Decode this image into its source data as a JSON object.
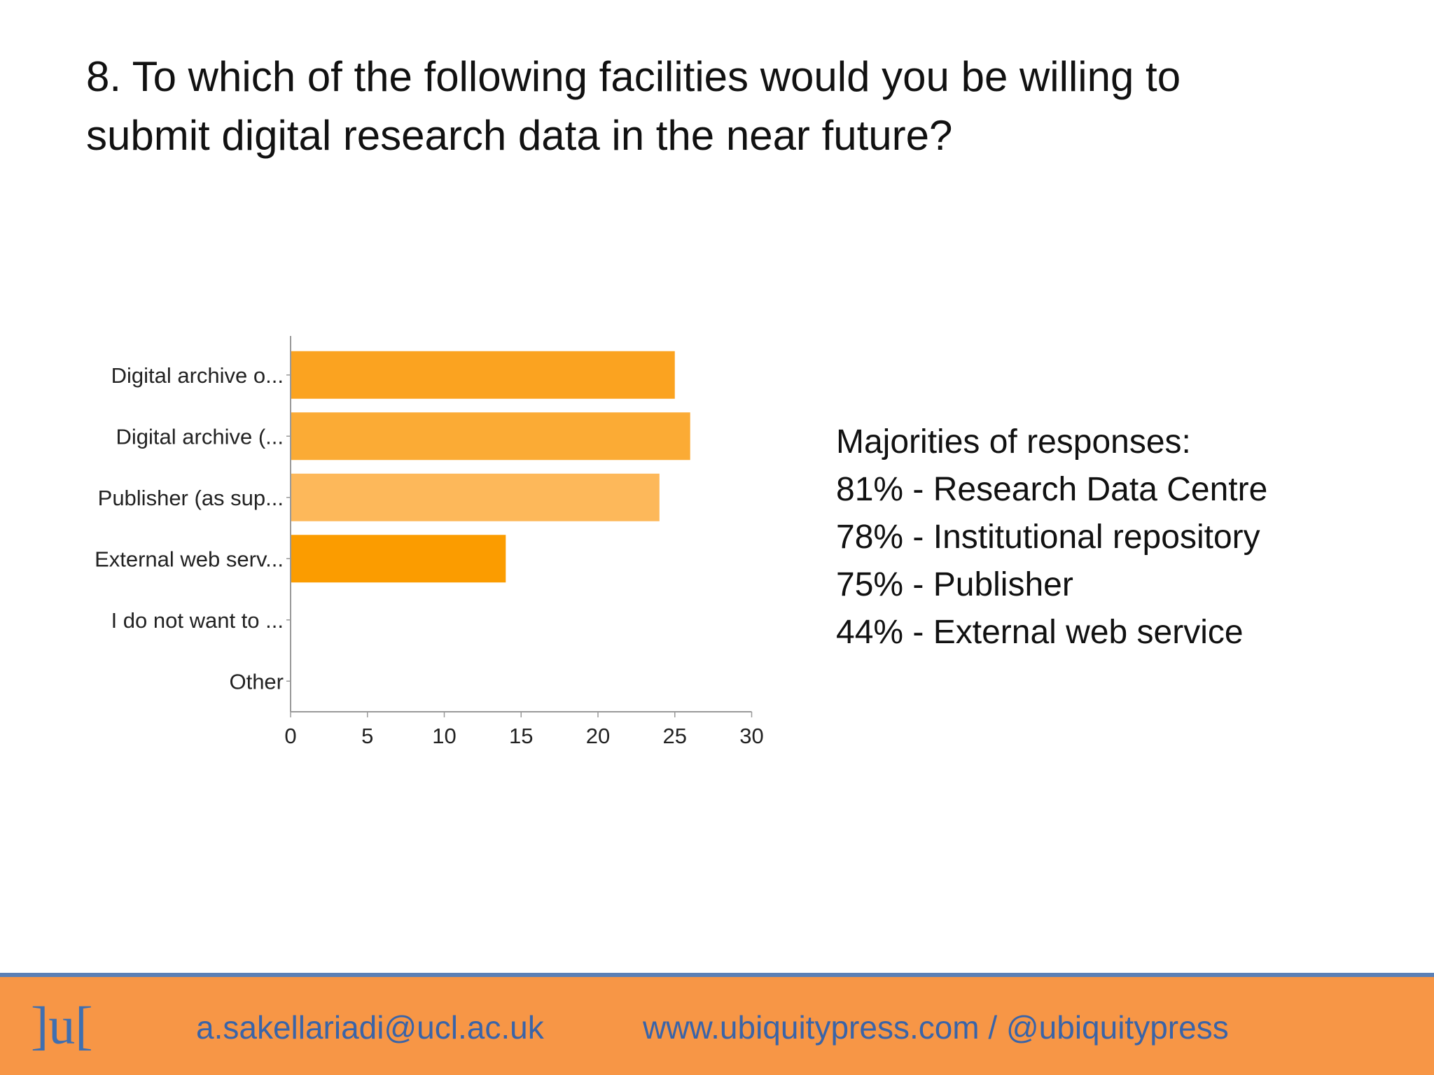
{
  "slide": {
    "title_line1": "8. To which of the following facilities would you be willing to",
    "title_line2": "submit digital research data in the near future?"
  },
  "summary": {
    "heading": "Majorities of responses:",
    "items": [
      "81% - Research Data Centre",
      "78% - Institutional repository",
      "75% - Publisher",
      "44% - External web service"
    ]
  },
  "footer": {
    "logo": "]u[",
    "email": "a.sakellariadi@ucl.ac.uk",
    "website": "www.ubiquitypress.com / @ubiquitypress"
  },
  "chart_data": {
    "type": "bar",
    "orientation": "horizontal",
    "categories": [
      "Digital archive o...",
      "Digital archive (...",
      "Publisher (as sup...",
      "External web serv...",
      "I do not want to ...",
      "Other"
    ],
    "values": [
      25,
      26,
      24,
      14,
      0,
      0
    ],
    "colors": [
      "#fba320",
      "#fbab35",
      "#fdb85a",
      "#fb9c00",
      "#fba320",
      "#fba320"
    ],
    "xlim": [
      0,
      30
    ],
    "xticks": [
      0,
      5,
      10,
      15,
      20,
      25,
      30
    ],
    "grid": false
  }
}
